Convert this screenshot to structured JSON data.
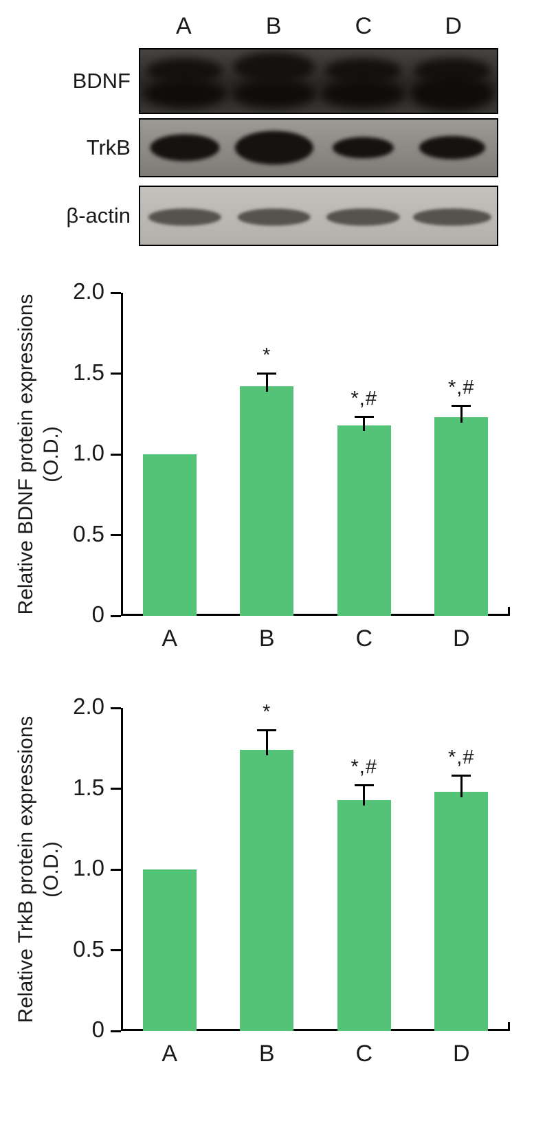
{
  "figure": {
    "lane_labels": [
      "A",
      "B",
      "C",
      "D"
    ],
    "blot": {
      "rows": [
        {
          "label": "BDNF",
          "style": "dark"
        },
        {
          "label": "TrkB",
          "style": "medium"
        },
        {
          "label": "β-actin",
          "style": "light"
        }
      ]
    }
  },
  "chart_data": [
    {
      "type": "bar",
      "categories": [
        "A",
        "B",
        "C",
        "D"
      ],
      "values": [
        1.0,
        1.42,
        1.18,
        1.23
      ],
      "errors": [
        0,
        0.08,
        0.05,
        0.07
      ],
      "annotations": [
        "",
        "*",
        "*,#",
        "*,#"
      ],
      "ylabel": "Relative BDNF protein expressions",
      "ylabel2": "(O.D.)",
      "xlabel": "",
      "ylim": [
        0,
        2.0
      ],
      "yticks": [
        0,
        0.5,
        1.0,
        1.5,
        2.0
      ],
      "ytick_labels": [
        "0",
        "0.5",
        "1.0",
        "1.5",
        "2.0"
      ],
      "bar_color": "#55c377",
      "legend": "none",
      "grid": false
    },
    {
      "type": "bar",
      "categories": [
        "A",
        "B",
        "C",
        "D"
      ],
      "values": [
        1.0,
        1.74,
        1.43,
        1.48
      ],
      "errors": [
        0,
        0.12,
        0.09,
        0.1
      ],
      "annotations": [
        "",
        "*",
        "*,#",
        "*,#"
      ],
      "ylabel": "Relative TrkB protein expressions",
      "ylabel2": "(O.D.)",
      "xlabel": "",
      "ylim": [
        0,
        2.0
      ],
      "yticks": [
        0,
        0.5,
        1.0,
        1.5,
        2.0
      ],
      "ytick_labels": [
        "0",
        "0.5",
        "1.0",
        "1.5",
        "2.0"
      ],
      "bar_color": "#55c377",
      "legend": "none",
      "grid": false
    }
  ]
}
